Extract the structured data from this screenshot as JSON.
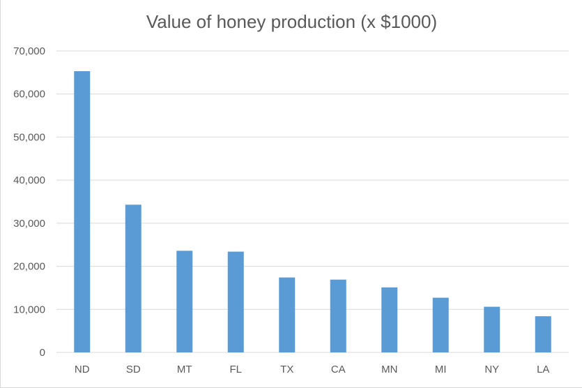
{
  "chart_data": {
    "type": "bar",
    "title": "Value of honey production (x $1000)",
    "xlabel": "",
    "ylabel": "",
    "categories": [
      "ND",
      "SD",
      "MT",
      "FL",
      "TX",
      "CA",
      "MN",
      "MI",
      "NY",
      "LA"
    ],
    "values": [
      65300,
      34300,
      23600,
      23400,
      17400,
      16900,
      15100,
      12700,
      10600,
      8400
    ],
    "ylim": [
      0,
      70000
    ],
    "yticks": [
      0,
      10000,
      20000,
      30000,
      40000,
      50000,
      60000,
      70000
    ],
    "ytick_labels": [
      "0",
      "10,000",
      "20,000",
      "30,000",
      "40,000",
      "50,000",
      "60,000",
      "70,000"
    ],
    "grid": true,
    "legend": false,
    "bar_color": "#5b9bd5",
    "grid_color": "#d9d9d9",
    "text_color": "#595959"
  }
}
